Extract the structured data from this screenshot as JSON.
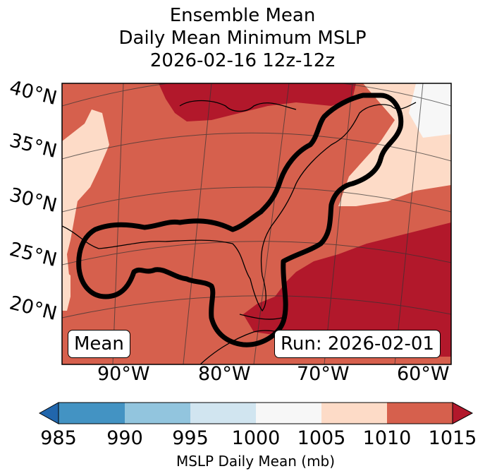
{
  "title": {
    "line1": "Ensemble Mean",
    "line2": "Daily Mean Minimum MSLP",
    "line3": "2026-02-16 12z-12z"
  },
  "map": {
    "lat_labels": [
      "40°N",
      "35°N",
      "30°N",
      "25°N",
      "20°N"
    ],
    "lon_labels": [
      "90°W",
      "80°W",
      "70°W",
      "60°W"
    ],
    "left_box": "Mean",
    "right_box": "Run: 2026-02-01"
  },
  "colorbar": {
    "ticks": [
      "985",
      "990",
      "995",
      "1000",
      "1005",
      "1010",
      "1015"
    ],
    "label": "MSLP Daily Mean (mb)",
    "colors": [
      "#2166ac",
      "#4393c3",
      "#92c5de",
      "#d1e5f0",
      "#f7f7f7",
      "#fddbc7",
      "#d6604d",
      "#b2182b"
    ]
  }
}
